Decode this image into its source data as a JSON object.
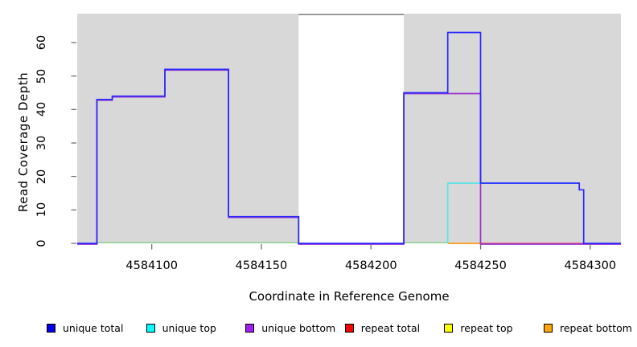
{
  "chart_data": {
    "type": "line",
    "subtype": "step-coverage-plot",
    "title": "",
    "xlabel": "Coordinate in Reference Genome",
    "ylabel": "Read Coverage Depth",
    "xlim": [
      4584066,
      4584314
    ],
    "ylim": [
      0,
      68.8
    ],
    "grid": false,
    "legend_position": "bottom",
    "x_ticks": [
      4584100,
      4584150,
      4584200,
      4584250,
      4584300
    ],
    "y_ticks": [
      0,
      10,
      20,
      30,
      40,
      50,
      60
    ],
    "panel_background": "#ffffff",
    "shaded_regions": [
      {
        "from": 4584066,
        "to": 4584167,
        "color": "#d8d8d8"
      },
      {
        "from": 4584215,
        "to": 4584314,
        "color": "#d8d8d8"
      }
    ],
    "series": [
      {
        "name": "unique total",
        "legend_color": "#0000ee",
        "line_color": "#2929ff",
        "points": [
          [
            4584066,
            0
          ],
          [
            4584075,
            0
          ],
          [
            4584075,
            43
          ],
          [
            4584082,
            43
          ],
          [
            4584082,
            44
          ],
          [
            4584106,
            44
          ],
          [
            4584106,
            52
          ],
          [
            4584135,
            52
          ],
          [
            4584135,
            8
          ],
          [
            4584167,
            8
          ],
          [
            4584167,
            0
          ],
          [
            4584215,
            0
          ],
          [
            4584215,
            45
          ],
          [
            4584235,
            45
          ],
          [
            4584235,
            63
          ],
          [
            4584250,
            63
          ],
          [
            4584250,
            18
          ],
          [
            4584295,
            18
          ],
          [
            4584295,
            16
          ],
          [
            4584297,
            16
          ],
          [
            4584297,
            0
          ],
          [
            4584314,
            0
          ]
        ]
      },
      {
        "name": "unique top",
        "legend_color": "#00ffff",
        "line_color": "#55e6e6",
        "points": [
          [
            4584235,
            0
          ],
          [
            4584235,
            18
          ],
          [
            4584295,
            18
          ]
        ]
      },
      {
        "name": "unique bottom",
        "legend_color": "#a020f0",
        "line_color": "#9933cc",
        "points": [
          [
            4584066,
            0
          ],
          [
            4584075,
            0
          ],
          [
            4584075,
            43
          ],
          [
            4584082,
            43
          ],
          [
            4584082,
            44
          ],
          [
            4584106,
            44
          ],
          [
            4584106,
            52
          ],
          [
            4584135,
            52
          ],
          [
            4584135,
            8
          ],
          [
            4584167,
            8
          ],
          [
            4584167,
            0
          ],
          [
            4584215,
            0
          ],
          [
            4584215,
            45
          ],
          [
            4584250,
            45
          ],
          [
            4584250,
            0
          ],
          [
            4584314,
            0
          ]
        ]
      },
      {
        "name": "repeat total",
        "legend_color": "#ff0000",
        "line_color": "#dd5577",
        "points": [
          [
            4584250,
            0
          ],
          [
            4584297,
            0
          ]
        ]
      },
      {
        "name": "repeat top",
        "legend_color": "#ffff00",
        "line_color": "#ffff00",
        "points": []
      },
      {
        "name": "repeat bottom",
        "legend_color": "#ffa500",
        "line_color": "#ff9712",
        "points": [
          [
            4584235,
            0
          ],
          [
            4584250,
            0
          ]
        ]
      }
    ],
    "overlap_segments": [
      {
        "color": "#9ad49a",
        "value": 0,
        "from": 4584075,
        "to": 4584167
      },
      {
        "color": "#9ad49a",
        "value": 0,
        "from": 4584215,
        "to": 4584235
      }
    ]
  }
}
